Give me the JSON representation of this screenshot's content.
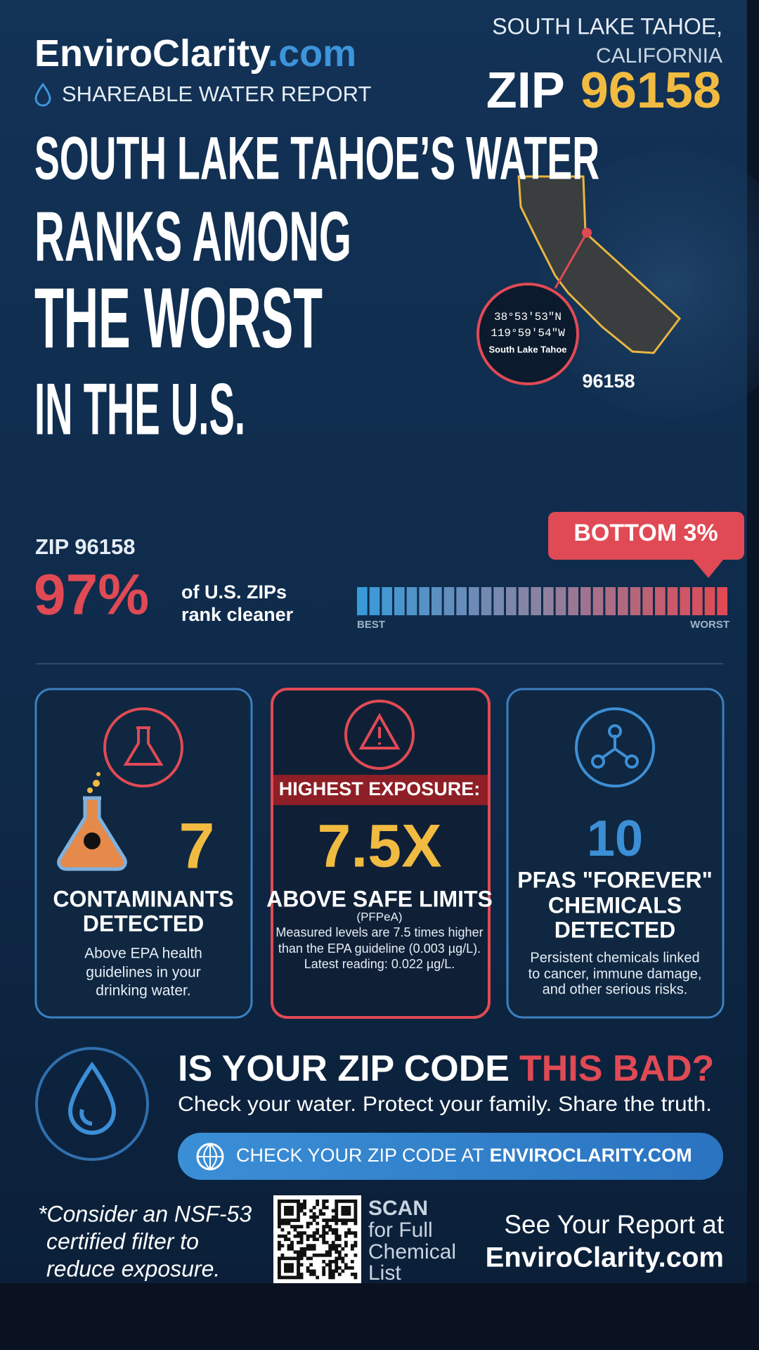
{
  "header": {
    "brand": "EnviroClarity",
    "brand_suffix": ".com",
    "subtitle": "SHAREABLE WATER REPORT",
    "location_line1": "SOUTH LAKE TAHOE,",
    "location_line2": "CALIFORNIA",
    "zip_label": "ZIP",
    "zip_code": "96158"
  },
  "headline": {
    "lines": [
      "SOUTH LAKE TAHOE’S WATER",
      "RANKS AMONG",
      "THE WORST",
      "IN THE U.S."
    ]
  },
  "map": {
    "latitude": "38°53′53″N",
    "longitude": "119°59′54″W",
    "place": "South Lake Tahoe",
    "zip": "96158"
  },
  "ranking": {
    "zip_label": "ZIP 96158",
    "percent": "97%",
    "caption_line1": "of U.S. ZIPs",
    "caption_line2": "rank cleaner",
    "scale_min_label": "BEST",
    "scale_max_label": "WORST",
    "badge": "BOTTOM 3%"
  },
  "cards": [
    {
      "number": "7",
      "title_lines": [
        "CONTAMINANTS",
        "DETECTED"
      ],
      "body_lines": [
        "Above EPA health",
        "guidelines in your",
        "drinking water."
      ]
    },
    {
      "banner": "HIGHEST EXPOSURE:",
      "number": "7.5X",
      "title_lines": [
        "ABOVE SAFE LIMITS"
      ],
      "note": "(PFPeA)",
      "body_lines": [
        "Measured levels are 7.5 times higher",
        "than the EPA guideline (0.003 µg/L).",
        "Latest reading: 0.022 µg/L."
      ]
    },
    {
      "number": "10",
      "title_lines": [
        "PFAS \"FOREVER\"",
        "CHEMICALS",
        "DETECTED"
      ],
      "body_lines": [
        "Persistent chemicals linked",
        "to cancer, immune damage,",
        "and other serious risks."
      ]
    }
  ],
  "cta": {
    "question_start": "IS YOUR ZIP CODE",
    "question_highlight": "THIS BAD?",
    "tagline": "Check your water. Protect your family. Share the truth.",
    "button_text": "CHECK YOUR ZIP CODE AT",
    "button_link": "ENVIROCLARITY.COM"
  },
  "footer": {
    "note_lines": [
      "*Consider an NSF-53",
      "certified filter to",
      "reduce exposure."
    ],
    "scan_lines": [
      "SCAN",
      "for Full",
      "Chemical",
      "List"
    ],
    "report_line1": "See Your Report at",
    "report_line2": "EnviroClarity.com"
  }
}
